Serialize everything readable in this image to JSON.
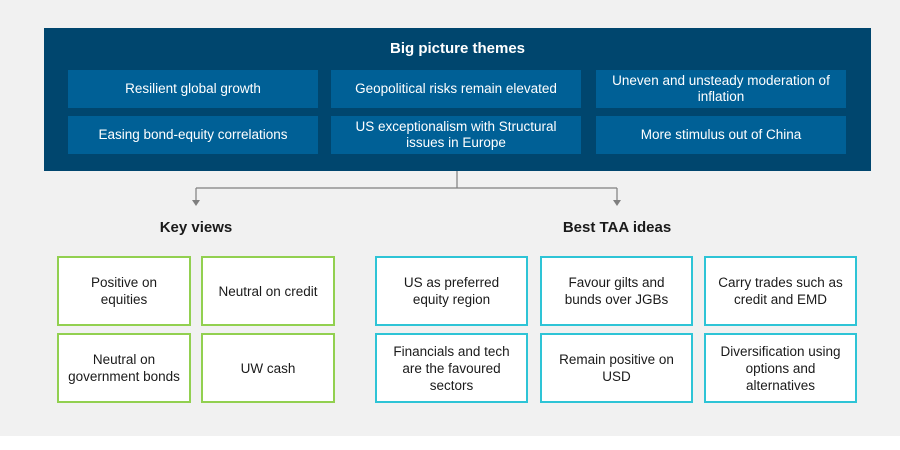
{
  "big_picture": {
    "title": "Big picture themes",
    "items": [
      "Resilient global growth",
      "Geopolitical risks remain elevated",
      "Uneven and unsteady moderation of inflation",
      "Easing bond-equity correlations",
      "US exceptionalism with Structural issues in Europe",
      "More stimulus out of China"
    ]
  },
  "key_views": {
    "title": "Key views",
    "items": [
      "Positive on equities",
      "Neutral on credit",
      "Neutral on government bonds",
      "UW cash"
    ]
  },
  "taa_ideas": {
    "title": "Best TAA ideas",
    "items": [
      "US as preferred equity region",
      "Favour gilts and bunds over JGBs",
      "Carry trades such as credit and EMD",
      "Financials and tech are the favoured sectors",
      "Remain positive on USD",
      "Diversification using options and alternatives"
    ]
  },
  "colors": {
    "header_bg": "#00466e",
    "theme_box_bg": "#006096",
    "key_view_border": "#92d050",
    "taa_border": "#2ec4d6"
  }
}
